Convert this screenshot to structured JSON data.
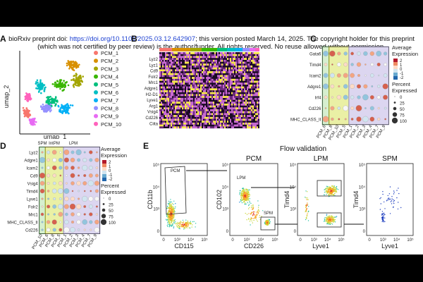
{
  "header": {
    "prefix": "bioRxiv preprint doi: ",
    "doi": "https://doi.org/10.1101/2025.03.12.642907",
    "suffix": "; this version posted March 14, 2025. The copyright holder for this preprint",
    "line2": "(which was not certified by peer review) is the author/funder. All rights reserved. No reuse allowed without permission."
  },
  "panels": {
    "A": {
      "letter": "A",
      "ylabel": "umap_2",
      "xlabel": "umap_1",
      "clusters": [
        {
          "name": "PCM_1",
          "color": "#f8766d"
        },
        {
          "name": "PCM_2",
          "color": "#d89000"
        },
        {
          "name": "PCM_3",
          "color": "#a3a500"
        },
        {
          "name": "PCM_4",
          "color": "#39b600"
        },
        {
          "name": "PCM_5",
          "color": "#00bf7d"
        },
        {
          "name": "PCM_6",
          "color": "#00bfc4"
        },
        {
          "name": "PCM_7",
          "color": "#00b0f6"
        },
        {
          "name": "PCM_8",
          "color": "#9590ff"
        },
        {
          "name": "PCM_9",
          "color": "#e76bf3"
        },
        {
          "name": "PCM_10",
          "color": "#ff62bc"
        }
      ]
    },
    "B": {
      "letter": "B",
      "genes": [
        "Lyz2",
        "Lyz1",
        "Cd9",
        "Folr2",
        "Mrc1",
        "Adgre1",
        "H2-D1",
        "Lyve1",
        "Arg1",
        "Vsig4",
        "Cd226",
        "Ciita"
      ]
    },
    "C": {
      "letter": "C",
      "genes": [
        "Gata6",
        "Timd4",
        "Icam2",
        "Adgre1",
        "Irf4",
        "Cd226",
        "MHC_CLASS_II"
      ],
      "columns": [
        "PCM_6",
        "PCM_8",
        "PCM_10",
        "PCM_5",
        "PCM_1",
        "PCM_2",
        "PCM_3",
        "PCM_4",
        "PCM_7",
        "PCM_9"
      ],
      "legend_expr_title": "Average Expression",
      "expr_ticks": [
        "2",
        "1",
        "0",
        "-1",
        "-2"
      ],
      "legend_pct_title": "Percent Expressed",
      "pct_ticks": [
        "0",
        "25",
        "50",
        "75",
        "100"
      ]
    },
    "D": {
      "letter": "D",
      "groups": [
        "SPM",
        "IntPM",
        "LPM"
      ],
      "genes": [
        "Lyz2",
        "Adgre1",
        "Icam2",
        "Cd9",
        "Vsig4",
        "Timd4",
        "Lyve1",
        "Folr2",
        "Mrc1",
        "MHC_CLASS_II",
        "Cd226"
      ],
      "columns": [
        "PCM_10",
        "PCM_6",
        "PCM_8",
        "PCM_5",
        "PCM_1",
        "PCM_2",
        "PCM_3",
        "PCM_4",
        "PCM_7",
        "PCM_9"
      ],
      "legend_expr_title": "Average Expression",
      "expr_ticks": [
        "2",
        "1",
        "0",
        "-1",
        "-2"
      ],
      "legend_pct_title": "Percent Expressed",
      "pct_ticks": [
        "0",
        "25",
        "50",
        "75",
        "100"
      ]
    },
    "E": {
      "letter": "E",
      "title": "Flow validation",
      "plots": [
        {
          "title": "",
          "xlabel": "CD115",
          "ylabel": "CD11b",
          "gates": [
            "PCM"
          ]
        },
        {
          "title": "PCM",
          "xlabel": "CD226",
          "ylabel": "CD102",
          "gates": [
            "LPM",
            "SPM"
          ]
        },
        {
          "title": "LPM",
          "xlabel": "Lyve1",
          "ylabel": "Timd4",
          "gates": []
        },
        {
          "title": "SPM",
          "xlabel": "Lyve1",
          "ylabel": "Timd4",
          "gates": []
        }
      ],
      "ticks": [
        "0",
        "10³",
        "10⁴",
        "10⁵"
      ]
    }
  }
}
